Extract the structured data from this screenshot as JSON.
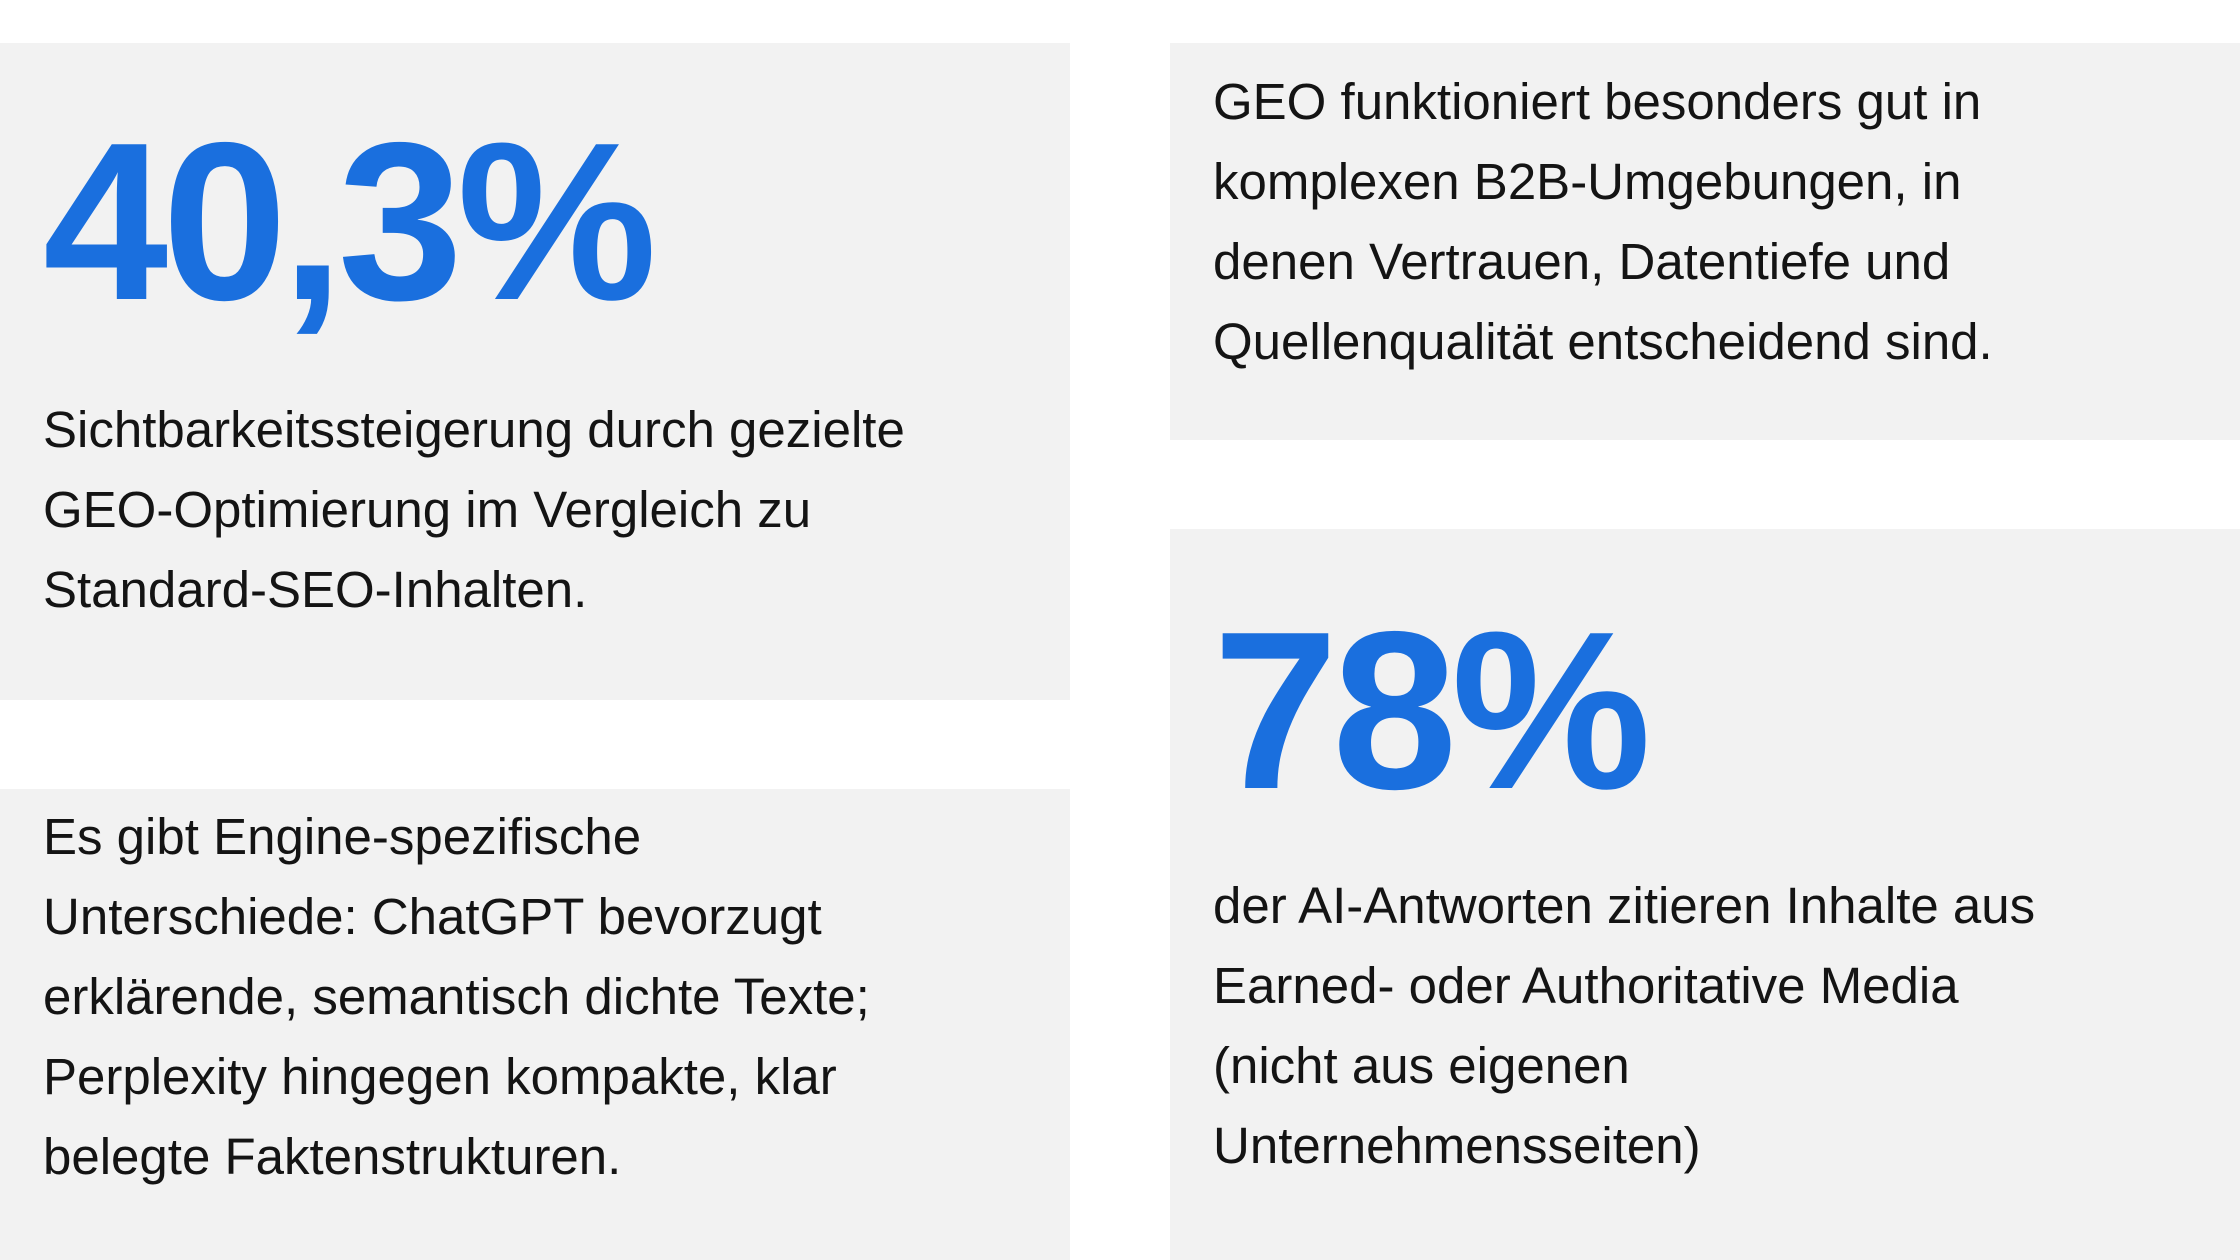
{
  "cards": [
    {
      "stat": "40,3%",
      "lines": [
        "Sichtbarkeitssteigerung durch gezielte",
        "GEO-Optimierung im Vergleich zu",
        "Standard-SEO-Inhalten."
      ]
    },
    {
      "lines": [
        "GEO funktioniert besonders gut in",
        "komplexen B2B-Umgebungen, in",
        "denen Vertrauen, Datentiefe und",
        "Quellenqualität entscheidend sind."
      ]
    },
    {
      "lines": [
        "Es gibt Engine-spezifische",
        "Unterschiede: ChatGPT bevorzugt",
        "erklärende, semantisch dichte Texte;",
        "Perplexity hingegen kompakte, klar",
        "belegte Faktenstrukturen."
      ]
    },
    {
      "stat": "78%",
      "lines": [
        "der AI-Antworten zitieren Inhalte aus",
        "Earned- oder Authoritative Media",
        "(nicht aus eigenen",
        "Unternehmensseiten)"
      ]
    }
  ]
}
